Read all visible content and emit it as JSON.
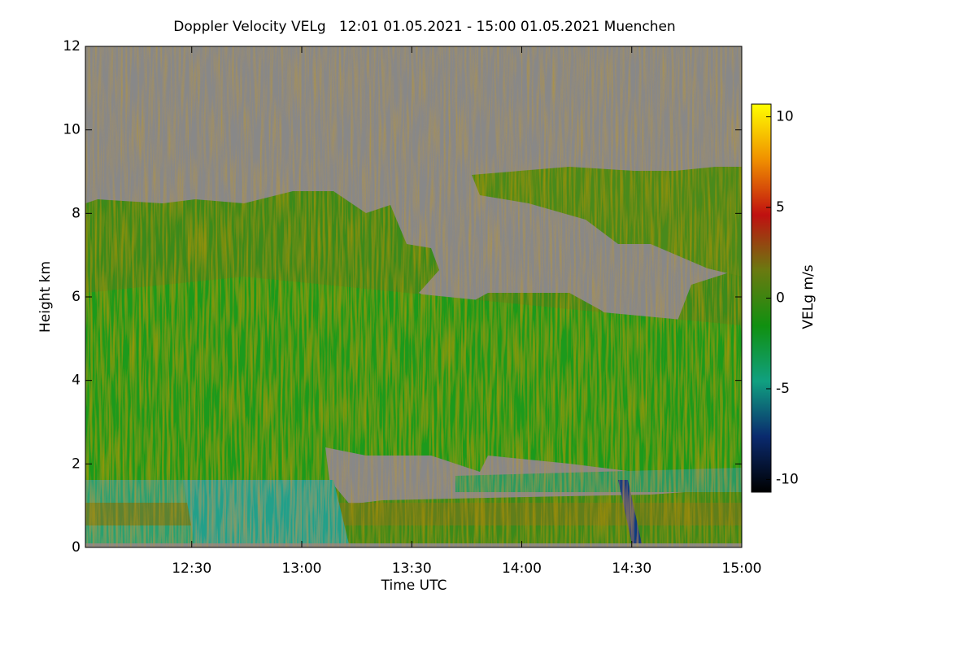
{
  "chart_data": {
    "type": "heatmap",
    "title": "Doppler Velocity VELg   12:01 01.05.2021 - 15:00 01.05.2021 Muenchen",
    "x_label": "Time UTC",
    "y_label": "Height km",
    "xlim": [
      721,
      900
    ],
    "xticks": [
      {
        "value": 750,
        "label": "12:30"
      },
      {
        "value": 780,
        "label": "13:00"
      },
      {
        "value": 810,
        "label": "13:30"
      },
      {
        "value": 840,
        "label": "14:00"
      },
      {
        "value": 870,
        "label": "14:30"
      },
      {
        "value": 900,
        "label": "15:00"
      }
    ],
    "ylim": [
      0,
      12
    ],
    "yticks": [
      0,
      2,
      4,
      6,
      8,
      10,
      12
    ],
    "colorbar": {
      "label": "VELg m/s",
      "lim": [
        -10.7,
        10.7
      ],
      "ticks": [
        -10,
        -5,
        0,
        5,
        10
      ],
      "colors": [
        "#000000",
        "#0a2a6e",
        "#10a080",
        "#109010",
        "#6a7a10",
        "#c01010",
        "#f09000",
        "#ffff00"
      ]
    }
  }
}
